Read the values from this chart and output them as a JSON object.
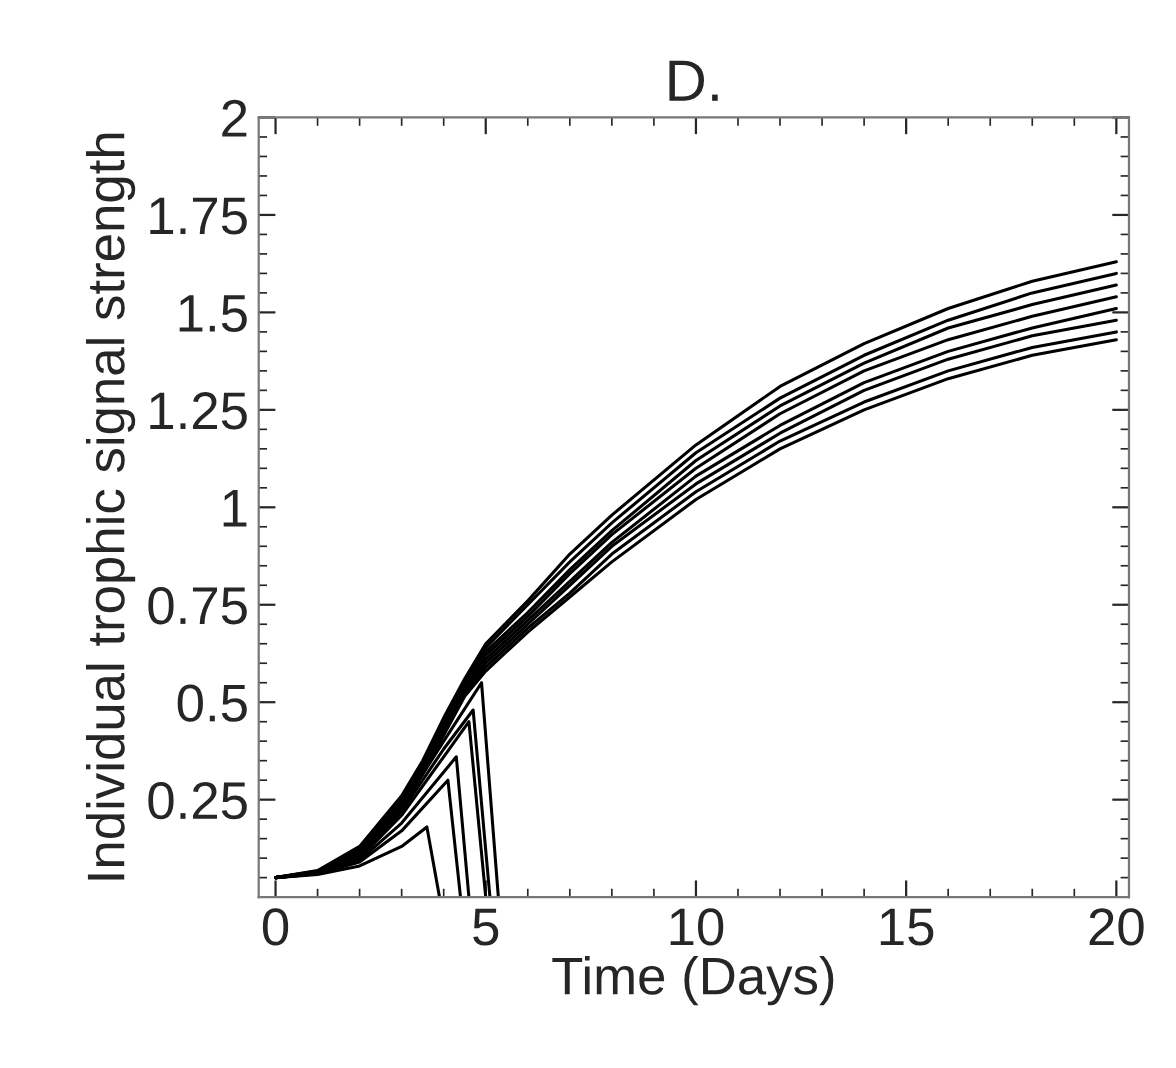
{
  "chart_data": {
    "type": "line",
    "title": "D.",
    "xlabel": "Time (Days)",
    "ylabel": "Individual trophic signal strength",
    "xlim": [
      -0.4,
      20.3
    ],
    "ylim": [
      0,
      2
    ],
    "xticks": [
      0,
      5,
      10,
      15,
      20
    ],
    "yticks": [
      {
        "value": 0.25,
        "label": "0.25"
      },
      {
        "value": 0.5,
        "label": "0.5"
      },
      {
        "value": 0.75,
        "label": "0.75"
      },
      1,
      {
        "value": 1.25,
        "label": "1.25"
      },
      {
        "value": 1.5,
        "label": "1.5"
      },
      {
        "value": 1.75,
        "label": "1.75"
      },
      2
    ],
    "grid": false,
    "legend": false,
    "marker": "none",
    "line_style": "solid",
    "x": [
      0,
      1,
      2,
      3,
      3.5,
      4,
      4.5,
      5,
      6,
      7,
      8,
      10,
      12,
      14,
      16,
      18,
      20
    ],
    "series": [
      {
        "color": "#000000",
        "values": [
          0.05,
          0.068,
          0.13,
          0.26,
          0.35,
          0.46,
          0.56,
          0.65,
          0.76,
          0.88,
          0.98,
          1.16,
          1.31,
          1.42,
          1.51,
          1.58,
          1.63
        ]
      },
      {
        "color": "#000000",
        "values": [
          0.05,
          0.067,
          0.127,
          0.255,
          0.345,
          0.45,
          0.55,
          0.64,
          0.75,
          0.86,
          0.96,
          1.14,
          1.28,
          1.39,
          1.48,
          1.55,
          1.6
        ]
      },
      {
        "color": "#000000",
        "values": [
          0.05,
          0.066,
          0.124,
          0.25,
          0.34,
          0.44,
          0.54,
          0.63,
          0.73,
          0.84,
          0.94,
          1.12,
          1.26,
          1.37,
          1.46,
          1.52,
          1.57
        ]
      },
      {
        "color": "#000000",
        "values": [
          0.05,
          0.065,
          0.12,
          0.245,
          0.335,
          0.435,
          0.535,
          0.62,
          0.72,
          0.83,
          0.93,
          1.1,
          1.24,
          1.35,
          1.43,
          1.49,
          1.54
        ]
      },
      {
        "color": "#000000",
        "values": [
          0.05,
          0.064,
          0.118,
          0.24,
          0.33,
          0.43,
          0.53,
          0.61,
          0.71,
          0.81,
          0.91,
          1.08,
          1.21,
          1.32,
          1.4,
          1.46,
          1.51
        ]
      },
      {
        "color": "#000000",
        "values": [
          0.05,
          0.063,
          0.115,
          0.235,
          0.325,
          0.425,
          0.525,
          0.6,
          0.7,
          0.8,
          0.9,
          1.06,
          1.19,
          1.3,
          1.38,
          1.44,
          1.48
        ]
      },
      {
        "color": "#000000",
        "values": [
          0.05,
          0.062,
          0.112,
          0.23,
          0.32,
          0.42,
          0.52,
          0.59,
          0.69,
          0.78,
          0.88,
          1.04,
          1.17,
          1.27,
          1.35,
          1.41,
          1.45
        ]
      },
      {
        "color": "#000000",
        "values": [
          0.05,
          0.061,
          0.11,
          0.225,
          0.315,
          0.415,
          0.515,
          0.58,
          0.68,
          0.77,
          0.86,
          1.02,
          1.15,
          1.25,
          1.33,
          1.39,
          1.43
        ]
      },
      {
        "color": "#000000",
        "x": [
          0,
          1,
          2,
          3,
          3.6,
          3.9
        ],
        "values": [
          0.05,
          0.058,
          0.08,
          0.13,
          0.18,
          0
        ]
      },
      {
        "color": "#000000",
        "x": [
          0,
          1,
          2,
          3,
          4.1,
          4.4
        ],
        "values": [
          0.05,
          0.06,
          0.09,
          0.17,
          0.3,
          0
        ]
      },
      {
        "color": "#000000",
        "x": [
          0,
          1,
          2,
          3,
          4.3,
          4.6
        ],
        "values": [
          0.05,
          0.06,
          0.095,
          0.19,
          0.36,
          0
        ]
      },
      {
        "color": "#000000",
        "x": [
          0,
          1,
          2,
          3,
          4,
          4.6,
          5.0
        ],
        "values": [
          0.05,
          0.062,
          0.1,
          0.21,
          0.36,
          0.45,
          0
        ]
      },
      {
        "color": "#000000",
        "x": [
          0,
          1,
          2,
          3,
          4,
          4.7,
          5.1
        ],
        "values": [
          0.05,
          0.062,
          0.105,
          0.22,
          0.38,
          0.48,
          0
        ]
      },
      {
        "color": "#000000",
        "x": [
          0,
          1,
          2,
          3,
          4,
          4.9,
          5.3
        ],
        "values": [
          0.05,
          0.063,
          0.11,
          0.23,
          0.4,
          0.55,
          0
        ]
      }
    ]
  }
}
